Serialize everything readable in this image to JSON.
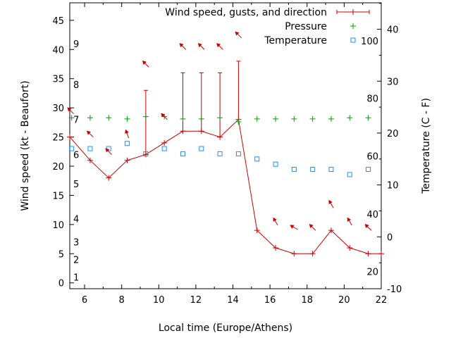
{
  "chart_data": {
    "type": "line",
    "xlabel": "Local time (Europe/Athens)",
    "ylabel": "Wind speed (kt - Beaufort)",
    "y2label": "Temperature (C - F)",
    "xlim": [
      5.2,
      22
    ],
    "ylim": [
      -1,
      48
    ],
    "y2lim": [
      -10,
      45.1
    ],
    "x_ticks": [
      6,
      8,
      10,
      12,
      14,
      16,
      18,
      20,
      22
    ],
    "y_ticks": [
      0,
      5,
      10,
      15,
      20,
      25,
      30,
      35,
      40,
      45
    ],
    "y2_ticks": [
      -10,
      0,
      10,
      20,
      30,
      40
    ],
    "beaufort_labels": [
      {
        "label": "1",
        "y": 1
      },
      {
        "label": "2",
        "y": 4
      },
      {
        "label": "3",
        "y": 7
      },
      {
        "label": "4",
        "y": 11
      },
      {
        "label": "5",
        "y": 17
      },
      {
        "label": "6",
        "y": 22
      },
      {
        "label": "7",
        "y": 28
      },
      {
        "label": "8",
        "y": 34
      },
      {
        "label": "9",
        "y": 41
      }
    ],
    "fahrenheit_labels": [
      {
        "label": "20",
        "y": -6.7
      },
      {
        "label": "40",
        "y": 4.4
      },
      {
        "label": "60",
        "y": 15.6
      },
      {
        "label": "80",
        "y": 26.7
      },
      {
        "label": "100",
        "y": 37.8
      }
    ],
    "legend": {
      "position": "top-right"
    },
    "series": [
      {
        "name": "Wind speed, gusts, and direction",
        "color": "#cc0000",
        "x": [
          5.2,
          6.3,
          7.3,
          8.3,
          9.3,
          10.3,
          11.3,
          12.3,
          13.3,
          14.3,
          15.3,
          16.3,
          17.3,
          18.3,
          19.3,
          20.3,
          21.3,
          22
        ],
        "y": [
          25,
          21,
          18,
          21,
          22,
          24,
          26,
          26,
          25,
          28,
          9,
          6,
          5,
          5,
          9,
          6,
          5,
          5
        ],
        "gusts": [
          null,
          null,
          null,
          null,
          33,
          null,
          36,
          36,
          36,
          38,
          null,
          null,
          null,
          null,
          null,
          null,
          null,
          null
        ]
      },
      {
        "name": "Pressure",
        "color": "#00a000",
        "x": [
          5.3,
          6.3,
          7.3,
          8.3,
          9.3,
          10.3,
          11.3,
          12.3,
          13.3,
          14.3,
          15.3,
          16.3,
          17.3,
          18.3,
          19.3,
          20.3,
          21.3
        ],
        "y": [
          28.3,
          28.3,
          28.3,
          28.1,
          28.5,
          28.5,
          28.1,
          28.1,
          28.3,
          27.6,
          28.1,
          28.1,
          28.1,
          28.1,
          28.1,
          28.3,
          28.3
        ]
      },
      {
        "name": "Temperature",
        "color": "#1e90ff",
        "axis": "y2",
        "x": [
          5.3,
          6.3,
          7.3,
          8.3,
          9.3,
          10.3,
          11.3,
          12.3,
          13.3,
          14.3,
          15.3,
          16.3,
          17.3,
          18.3,
          19.3,
          20.3,
          21.3
        ],
        "y": [
          17,
          17,
          17,
          18,
          16,
          17,
          16,
          17,
          16,
          16,
          15,
          14,
          13,
          13,
          13,
          12,
          13
        ]
      }
    ],
    "wind_direction_deg": [
      {
        "x": 5.25,
        "y": 29.5,
        "deg": 315
      },
      {
        "x": 6.3,
        "y": 25.5,
        "deg": 315
      },
      {
        "x": 7.3,
        "y": 22.5,
        "deg": 315
      },
      {
        "x": 8.3,
        "y": 25.5,
        "deg": 340
      },
      {
        "x": 9.3,
        "y": 37.5,
        "deg": 315
      },
      {
        "x": 10.3,
        "y": 28.5,
        "deg": 315
      },
      {
        "x": 11.3,
        "y": 40.5,
        "deg": 315
      },
      {
        "x": 12.3,
        "y": 40.5,
        "deg": 315
      },
      {
        "x": 13.3,
        "y": 40.5,
        "deg": 315
      },
      {
        "x": 14.3,
        "y": 42.5,
        "deg": 315
      },
      {
        "x": 16.3,
        "y": 10.5,
        "deg": 330
      },
      {
        "x": 17.3,
        "y": 9.5,
        "deg": 300
      },
      {
        "x": 18.3,
        "y": 9.5,
        "deg": 315
      },
      {
        "x": 19.3,
        "y": 13.5,
        "deg": 330
      },
      {
        "x": 20.3,
        "y": 10.5,
        "deg": 330
      },
      {
        "x": 21.3,
        "y": 9.5,
        "deg": 315
      }
    ]
  }
}
